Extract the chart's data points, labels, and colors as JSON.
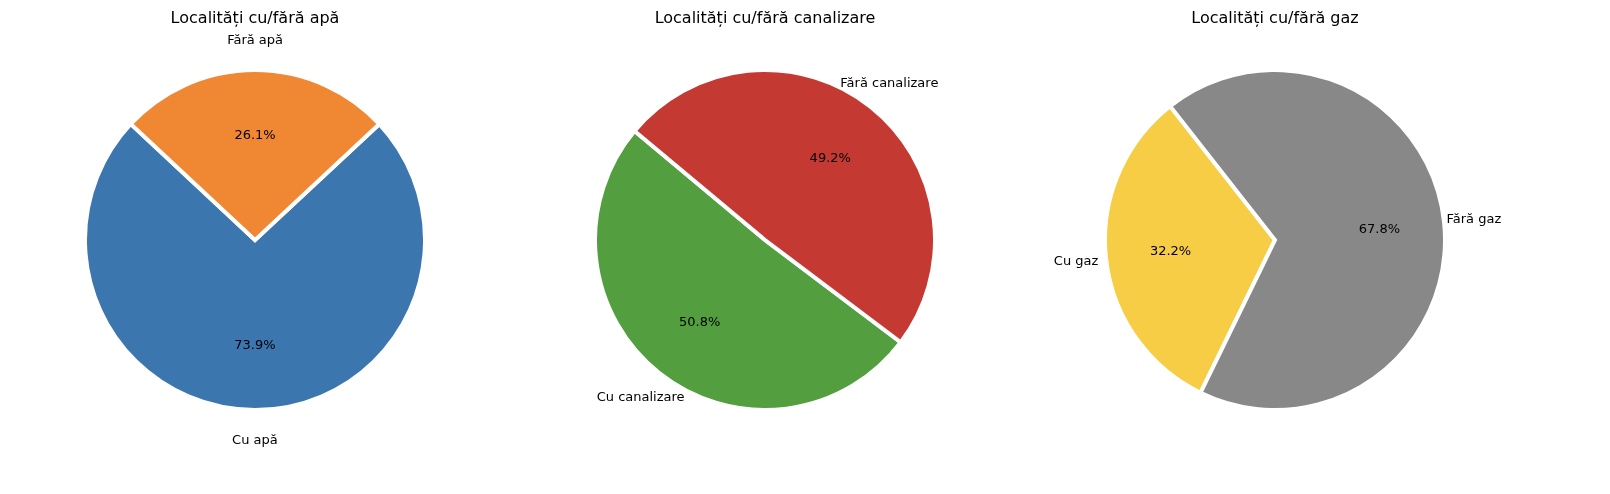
{
  "chart_data": [
    {
      "type": "pie",
      "title": "Localități cu/fără apă",
      "categories": [
        "Cu apă",
        "Fără apă"
      ],
      "values": [
        73.9,
        26.1
      ],
      "colors": [
        "#3b76ae",
        "#ef8733"
      ],
      "value_labels": [
        "73.9%",
        "26.1%"
      ]
    },
    {
      "type": "pie",
      "title": "Localități cu/fără canalizare",
      "categories": [
        "Cu canalizare",
        "Fără canalizare"
      ],
      "values": [
        50.8,
        49.2
      ],
      "colors": [
        "#539e3f",
        "#c43a33"
      ],
      "value_labels": [
        "50.8%",
        "49.2%"
      ]
    },
    {
      "type": "pie",
      "title": "Localități cu/fără gaz",
      "categories": [
        "Cu gaz",
        "Fără gaz"
      ],
      "values": [
        32.2,
        67.8
      ],
      "colors": [
        "#f6cd44",
        "#888888"
      ],
      "value_labels": [
        "32.2%",
        "67.8%"
      ]
    }
  ]
}
